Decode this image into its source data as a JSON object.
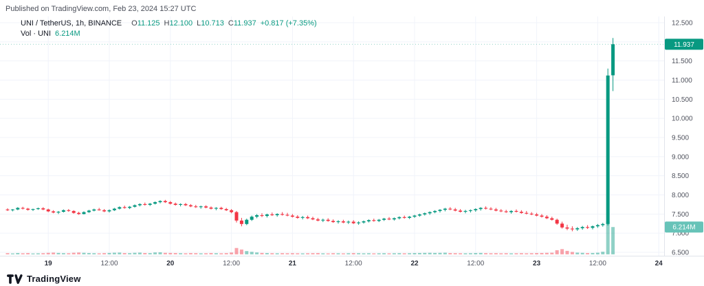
{
  "header": {
    "published": "Published on TradingView.com, Feb 23, 2024 15:27 UTC"
  },
  "legend": {
    "symbol": "UNI / TetherUS, 1h, BINANCE",
    "o_label": "O",
    "o": "11.125",
    "h_label": "H",
    "h": "12.100",
    "l_label": "L",
    "l": "10.713",
    "c_label": "C",
    "c": "11.937",
    "change": "+0.817 (+7.35%)",
    "vol_title": "Vol · UNI",
    "vol_value": "6.214M"
  },
  "footer": {
    "brand": "TradingView"
  },
  "colors": {
    "up": "#089981",
    "down": "#f23645",
    "vol_up": "rgba(8,153,129,0.45)",
    "vol_down": "rgba(242,54,69,0.45)",
    "grid": "#f0f3fa",
    "separator": "#e0e3eb",
    "axis_text": "#50535e",
    "axis_text_major": "#2a2e39",
    "badge_price_bg": "#089981",
    "badge_vol_bg": "#67c3b8",
    "badge_text": "#ffffff"
  },
  "chart_data": {
    "type": "candlestick",
    "title": "UNI / TetherUS, 1h, BINANCE",
    "legend_position": "top-left",
    "grid": true,
    "y_axis": {
      "min": 6.5,
      "max": 12.5,
      "ticks": [
        "12.500",
        "12.000",
        "11.500",
        "11.000",
        "10.500",
        "10.000",
        "9.500",
        "9.000",
        "8.500",
        "8.000",
        "7.500",
        "7.000",
        "6.500"
      ]
    },
    "x_axis": {
      "ticks": [
        {
          "i": 8,
          "label": "19",
          "major": true
        },
        {
          "i": 20,
          "label": "12:00",
          "major": false
        },
        {
          "i": 32,
          "label": "20",
          "major": true
        },
        {
          "i": 44,
          "label": "12:00",
          "major": false
        },
        {
          "i": 56,
          "label": "21",
          "major": true
        },
        {
          "i": 68,
          "label": "12:00",
          "major": false
        },
        {
          "i": 80,
          "label": "22",
          "major": true
        },
        {
          "i": 92,
          "label": "12:00",
          "major": false
        },
        {
          "i": 104,
          "label": "23",
          "major": true
        },
        {
          "i": 116,
          "label": "12:00",
          "major": false
        },
        {
          "i": 128,
          "label": "24",
          "major": true
        }
      ]
    },
    "last_price": 11.937,
    "last_price_label": "11.937",
    "last_volume": 6.214,
    "volume_label": "6.214M",
    "ohlcv_note": "each candle is [open, high, low, close, volume_millions]",
    "candles": [
      [
        7.62,
        7.65,
        7.58,
        7.6,
        0.28
      ],
      [
        7.6,
        7.63,
        7.57,
        7.62,
        0.22
      ],
      [
        7.62,
        7.68,
        7.6,
        7.66,
        0.31
      ],
      [
        7.66,
        7.69,
        7.62,
        7.64,
        0.25
      ],
      [
        7.64,
        7.66,
        7.59,
        7.61,
        0.3
      ],
      [
        7.61,
        7.64,
        7.58,
        7.63,
        0.21
      ],
      [
        7.63,
        7.67,
        7.61,
        7.65,
        0.24
      ],
      [
        7.65,
        7.68,
        7.6,
        7.62,
        0.27
      ],
      [
        7.62,
        7.64,
        7.55,
        7.57,
        0.35
      ],
      [
        7.57,
        7.6,
        7.52,
        7.54,
        0.4
      ],
      [
        7.54,
        7.58,
        7.5,
        7.56,
        0.33
      ],
      [
        7.56,
        7.62,
        7.54,
        7.6,
        0.28
      ],
      [
        7.6,
        7.63,
        7.56,
        7.58,
        0.26
      ],
      [
        7.58,
        7.6,
        7.51,
        7.53,
        0.37
      ],
      [
        7.53,
        7.56,
        7.48,
        7.5,
        0.42
      ],
      [
        7.5,
        7.57,
        7.49,
        7.55,
        0.36
      ],
      [
        7.55,
        7.61,
        7.53,
        7.59,
        0.3
      ],
      [
        7.59,
        7.64,
        7.57,
        7.62,
        0.27
      ],
      [
        7.62,
        7.66,
        7.59,
        7.6,
        0.24
      ],
      [
        7.6,
        7.63,
        7.55,
        7.57,
        0.29
      ],
      [
        7.57,
        7.62,
        7.54,
        7.6,
        0.33
      ],
      [
        7.6,
        7.66,
        7.58,
        7.64,
        0.38
      ],
      [
        7.64,
        7.7,
        7.62,
        7.68,
        0.41
      ],
      [
        7.68,
        7.72,
        7.64,
        7.66,
        0.3
      ],
      [
        7.66,
        7.71,
        7.63,
        7.69,
        0.28
      ],
      [
        7.69,
        7.75,
        7.67,
        7.73,
        0.36
      ],
      [
        7.73,
        7.78,
        7.7,
        7.76,
        0.4
      ],
      [
        7.76,
        7.8,
        7.72,
        7.74,
        0.31
      ],
      [
        7.74,
        7.79,
        7.71,
        7.77,
        0.29
      ],
      [
        7.77,
        7.83,
        7.75,
        7.81,
        0.44
      ],
      [
        7.81,
        7.86,
        7.78,
        7.84,
        0.47
      ],
      [
        7.84,
        7.87,
        7.79,
        7.81,
        0.35
      ],
      [
        7.81,
        7.84,
        7.75,
        7.77,
        0.33
      ],
      [
        7.77,
        7.8,
        7.72,
        7.74,
        0.31
      ],
      [
        7.74,
        7.78,
        7.7,
        7.76,
        0.27
      ],
      [
        7.76,
        7.79,
        7.71,
        7.73,
        0.25
      ],
      [
        7.73,
        7.76,
        7.68,
        7.7,
        0.3
      ],
      [
        7.7,
        7.74,
        7.66,
        7.68,
        0.28
      ],
      [
        7.68,
        7.72,
        7.64,
        7.7,
        0.24
      ],
      [
        7.7,
        7.73,
        7.65,
        7.67,
        0.26
      ],
      [
        7.67,
        7.7,
        7.62,
        7.64,
        0.31
      ],
      [
        7.64,
        7.68,
        7.6,
        7.66,
        0.27
      ],
      [
        7.66,
        7.69,
        7.61,
        7.63,
        0.25
      ],
      [
        7.63,
        7.66,
        7.58,
        7.6,
        0.29
      ],
      [
        7.6,
        7.63,
        7.52,
        7.55,
        0.42
      ],
      [
        7.55,
        7.58,
        7.28,
        7.33,
        1.45
      ],
      [
        7.33,
        7.4,
        7.18,
        7.24,
        1.1
      ],
      [
        7.24,
        7.38,
        7.21,
        7.35,
        0.75
      ],
      [
        7.35,
        7.46,
        7.32,
        7.43,
        0.58
      ],
      [
        7.43,
        7.5,
        7.39,
        7.47,
        0.44
      ],
      [
        7.47,
        7.52,
        7.42,
        7.45,
        0.33
      ],
      [
        7.45,
        7.51,
        7.41,
        7.49,
        0.3
      ],
      [
        7.49,
        7.54,
        7.45,
        7.47,
        0.27
      ],
      [
        7.47,
        7.52,
        7.43,
        7.5,
        0.25
      ],
      [
        7.5,
        7.55,
        7.46,
        7.48,
        0.28
      ],
      [
        7.48,
        7.53,
        7.44,
        7.46,
        0.26
      ],
      [
        7.46,
        7.5,
        7.41,
        7.43,
        0.27
      ],
      [
        7.43,
        7.47,
        7.38,
        7.4,
        0.25
      ],
      [
        7.4,
        7.45,
        7.36,
        7.42,
        0.23
      ],
      [
        7.42,
        7.46,
        7.37,
        7.39,
        0.26
      ],
      [
        7.39,
        7.43,
        7.34,
        7.36,
        0.28
      ],
      [
        7.36,
        7.4,
        7.31,
        7.33,
        0.3
      ],
      [
        7.33,
        7.38,
        7.29,
        7.35,
        0.24
      ],
      [
        7.35,
        7.39,
        7.3,
        7.32,
        0.22
      ],
      [
        7.32,
        7.36,
        7.27,
        7.29,
        0.27
      ],
      [
        7.29,
        7.34,
        7.25,
        7.31,
        0.25
      ],
      [
        7.31,
        7.35,
        7.26,
        7.28,
        0.23
      ],
      [
        7.28,
        7.33,
        7.24,
        7.3,
        0.26
      ],
      [
        7.3,
        7.34,
        7.24,
        7.26,
        0.29
      ],
      [
        7.26,
        7.31,
        7.22,
        7.28,
        0.27
      ],
      [
        7.28,
        7.33,
        7.25,
        7.31,
        0.24
      ],
      [
        7.31,
        7.36,
        7.28,
        7.34,
        0.26
      ],
      [
        7.34,
        7.38,
        7.3,
        7.32,
        0.23
      ],
      [
        7.32,
        7.37,
        7.29,
        7.35,
        0.25
      ],
      [
        7.35,
        7.4,
        7.32,
        7.38,
        0.27
      ],
      [
        7.38,
        7.42,
        7.34,
        7.36,
        0.24
      ],
      [
        7.36,
        7.41,
        7.33,
        7.39,
        0.26
      ],
      [
        7.39,
        7.44,
        7.36,
        7.42,
        0.28
      ],
      [
        7.42,
        7.46,
        7.38,
        7.4,
        0.25
      ],
      [
        7.4,
        7.45,
        7.37,
        7.43,
        0.27
      ],
      [
        7.43,
        7.48,
        7.4,
        7.46,
        0.3
      ],
      [
        7.46,
        7.51,
        7.43,
        7.49,
        0.32
      ],
      [
        7.49,
        7.54,
        7.46,
        7.52,
        0.34
      ],
      [
        7.52,
        7.57,
        7.48,
        7.55,
        0.36
      ],
      [
        7.55,
        7.6,
        7.52,
        7.58,
        0.33
      ],
      [
        7.58,
        7.63,
        7.54,
        7.61,
        0.35
      ],
      [
        7.61,
        7.66,
        7.57,
        7.64,
        0.38
      ],
      [
        7.64,
        7.68,
        7.6,
        7.62,
        0.3
      ],
      [
        7.62,
        7.66,
        7.57,
        7.59,
        0.28
      ],
      [
        7.59,
        7.63,
        7.54,
        7.56,
        0.26
      ],
      [
        7.56,
        7.61,
        7.52,
        7.58,
        0.25
      ],
      [
        7.58,
        7.62,
        7.54,
        7.6,
        0.27
      ],
      [
        7.6,
        7.65,
        7.56,
        7.63,
        0.31
      ],
      [
        7.63,
        7.68,
        7.59,
        7.66,
        0.33
      ],
      [
        7.66,
        7.7,
        7.62,
        7.64,
        0.29
      ],
      [
        7.64,
        7.68,
        7.6,
        7.62,
        0.26
      ],
      [
        7.62,
        7.66,
        7.57,
        7.59,
        0.28
      ],
      [
        7.59,
        7.63,
        7.55,
        7.57,
        0.25
      ],
      [
        7.57,
        7.61,
        7.53,
        7.55,
        0.27
      ],
      [
        7.55,
        7.6,
        7.51,
        7.58,
        0.24
      ],
      [
        7.58,
        7.62,
        7.54,
        7.56,
        0.26
      ],
      [
        7.56,
        7.6,
        7.51,
        7.53,
        0.28
      ],
      [
        7.53,
        7.58,
        7.49,
        7.51,
        0.25
      ],
      [
        7.51,
        7.55,
        7.47,
        7.49,
        0.27
      ],
      [
        7.49,
        7.53,
        7.44,
        7.46,
        0.3
      ],
      [
        7.46,
        7.5,
        7.41,
        7.43,
        0.32
      ],
      [
        7.43,
        7.47,
        7.37,
        7.39,
        0.35
      ],
      [
        7.39,
        7.43,
        7.33,
        7.35,
        0.38
      ],
      [
        7.35,
        7.38,
        7.22,
        7.25,
        0.95
      ],
      [
        7.25,
        7.3,
        7.12,
        7.15,
        1.2
      ],
      [
        7.15,
        7.22,
        7.08,
        7.12,
        0.8
      ],
      [
        7.12,
        7.18,
        7.05,
        7.1,
        0.55
      ],
      [
        7.1,
        7.16,
        7.06,
        7.13,
        0.4
      ],
      [
        7.13,
        7.19,
        7.09,
        7.16,
        0.35
      ],
      [
        7.16,
        7.21,
        7.11,
        7.14,
        0.3
      ],
      [
        7.14,
        7.2,
        7.1,
        7.18,
        0.32
      ],
      [
        7.18,
        7.24,
        7.14,
        7.21,
        0.38
      ],
      [
        7.21,
        7.27,
        7.17,
        7.24,
        0.6
      ],
      [
        7.24,
        11.3,
        7.2,
        11.12,
        7.5
      ],
      [
        11.125,
        12.1,
        10.713,
        11.937,
        6.214
      ]
    ]
  }
}
